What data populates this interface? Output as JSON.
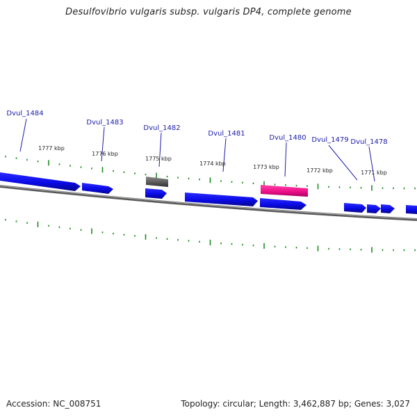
{
  "title": "Desulfovibrio vulgaris subsp. vulgaris DP4, complete genome",
  "footer": {
    "accession": "Accession: NC_008751",
    "summary": "Topology: circular; Length: 3,462,887 bp; Genes: 3,027"
  },
  "colors": {
    "backbone": "#7d7d7d",
    "cds_forward": "#0a0ae6",
    "cds_reverse": "#0a0ae6",
    "gene_gray": "#5a5a5a",
    "gene_pink": "#ee1188",
    "ticks": "#1a8a1a",
    "gene_label": "#1a1aaa",
    "kbp_label": "#222222"
  },
  "ruler": {
    "unit": "kbp",
    "labels": [
      "1777 kbp",
      "1776 kbp",
      "1775 kbp",
      "1774 kbp",
      "1773 kbp",
      "1772 kbp",
      "1771 kbp"
    ]
  },
  "genes": [
    {
      "name": "Dvul_1484"
    },
    {
      "name": "Dvul_1483"
    },
    {
      "name": "Dvul_1482"
    },
    {
      "name": "Dvul_1481"
    },
    {
      "name": "Dvul_1480"
    },
    {
      "name": "Dvul_1479"
    },
    {
      "name": "Dvul_1478"
    }
  ]
}
